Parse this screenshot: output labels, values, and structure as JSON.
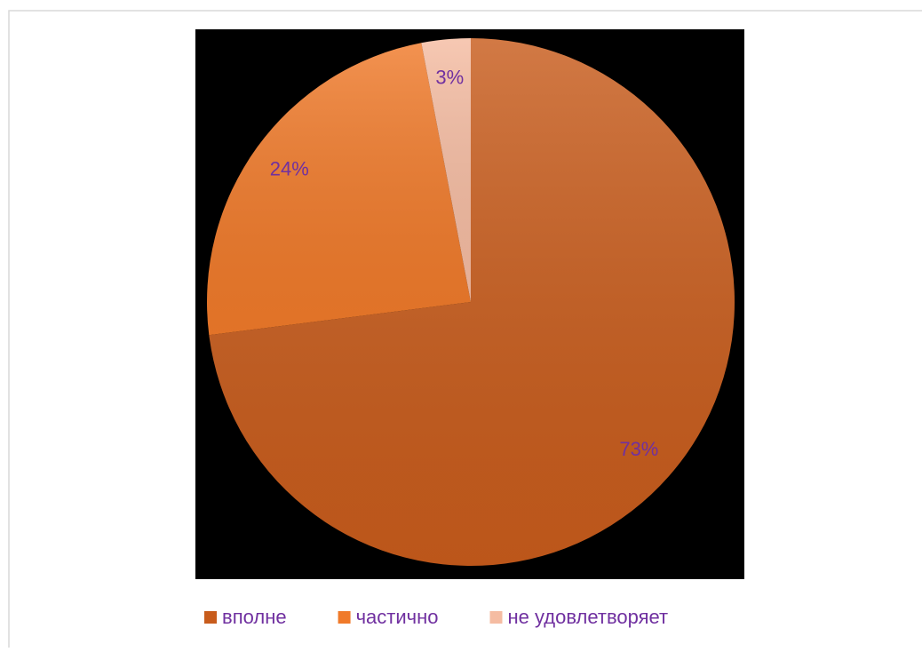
{
  "chart_data": {
    "type": "pie",
    "categories": [
      "вполне",
      "частично",
      "не удовлетворяет"
    ],
    "values": [
      73,
      24,
      3
    ],
    "value_labels": [
      "73%",
      "24%",
      "3%"
    ],
    "colors": [
      "#c85c1c",
      "#f07a2a",
      "#f5bca2"
    ],
    "legend": "bottom"
  }
}
